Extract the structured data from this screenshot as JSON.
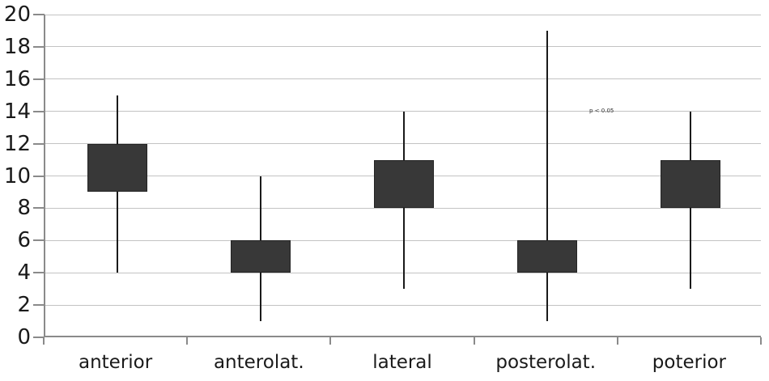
{
  "chart_data": {
    "type": "boxplot",
    "title": "",
    "xlabel": "",
    "ylabel": "",
    "categories": [
      "anterior",
      "anterolat.",
      "lateral",
      "posterolat.",
      "poterior"
    ],
    "series": [
      {
        "category": "anterior",
        "whisker_low": 4,
        "box_low": 9,
        "box_high": 12,
        "whisker_high": 15
      },
      {
        "category": "anterolat.",
        "whisker_low": 1,
        "box_low": 4,
        "box_high": 6,
        "whisker_high": 10
      },
      {
        "category": "lateral",
        "whisker_low": 3,
        "box_low": 8,
        "box_high": 11,
        "whisker_high": 14
      },
      {
        "category": "posterolat.",
        "whisker_low": 1,
        "box_low": 4,
        "box_high": 6,
        "whisker_high": 19
      },
      {
        "category": "poterior",
        "whisker_low": 3,
        "box_low": 8,
        "box_high": 11,
        "whisker_high": 14
      }
    ],
    "ylim": [
      0,
      20
    ],
    "yticks": [
      0,
      2,
      4,
      6,
      8,
      10,
      12,
      14,
      16,
      18,
      20
    ],
    "grid": true,
    "legend": "none",
    "annotation": {
      "text": "p < 0.05"
    },
    "colors": {
      "box_fill": "#383838",
      "box_border": "#242424",
      "whisker": "#1a1a1a",
      "gridline": "#c3c3c3",
      "axis": "#8a8a8a",
      "text": "#1a1a1a"
    }
  }
}
